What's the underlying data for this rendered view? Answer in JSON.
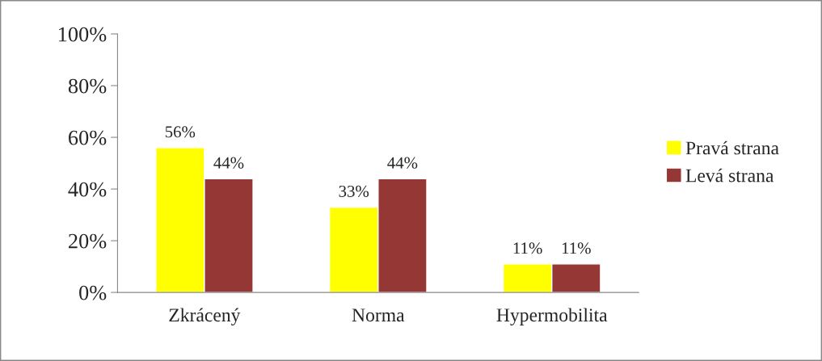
{
  "chart_data": {
    "type": "bar",
    "categories": [
      "Zkrácený",
      "Norma",
      "Hypermobilita"
    ],
    "series": [
      {
        "name": "Pravá strana",
        "color": "#ffff00",
        "values": [
          56,
          33,
          11
        ],
        "value_labels": [
          "56%",
          "33%",
          "11%"
        ]
      },
      {
        "name": "Levá strana",
        "color": "#953735",
        "values": [
          44,
          44,
          11
        ],
        "value_labels": [
          "44%",
          "44%",
          "11%"
        ]
      }
    ],
    "ylim": [
      0,
      100
    ],
    "yticks": [
      {
        "value": 0,
        "label": "0%"
      },
      {
        "value": 20,
        "label": "20%"
      },
      {
        "value": 40,
        "label": "40%"
      },
      {
        "value": 60,
        "label": "60%"
      },
      {
        "value": 80,
        "label": "80%"
      },
      {
        "value": 100,
        "label": "100%"
      }
    ],
    "grid": false,
    "legend": "right"
  }
}
